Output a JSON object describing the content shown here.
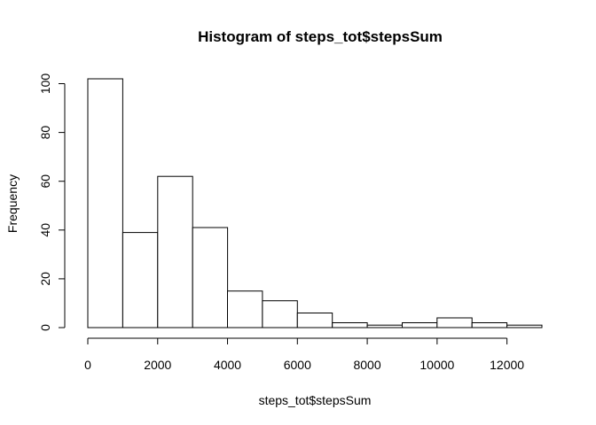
{
  "chart_data": {
    "type": "bar",
    "subtype": "histogram",
    "title": "Histogram of steps_tot$stepsSum",
    "xlabel": "steps_tot$stepsSum",
    "ylabel": "Frequency",
    "bin_width": 1000,
    "bins": [
      {
        "start": 0,
        "end": 1000,
        "count": 102
      },
      {
        "start": 1000,
        "end": 2000,
        "count": 39
      },
      {
        "start": 2000,
        "end": 3000,
        "count": 62
      },
      {
        "start": 3000,
        "end": 4000,
        "count": 41
      },
      {
        "start": 4000,
        "end": 5000,
        "count": 15
      },
      {
        "start": 5000,
        "end": 6000,
        "count": 11
      },
      {
        "start": 6000,
        "end": 7000,
        "count": 6
      },
      {
        "start": 7000,
        "end": 8000,
        "count": 2
      },
      {
        "start": 8000,
        "end": 9000,
        "count": 1
      },
      {
        "start": 9000,
        "end": 10000,
        "count": 2
      },
      {
        "start": 10000,
        "end": 11000,
        "count": 4
      },
      {
        "start": 11000,
        "end": 12000,
        "count": 2
      },
      {
        "start": 12000,
        "end": 13000,
        "count": 1
      }
    ],
    "xlim": [
      0,
      13000
    ],
    "ylim": [
      0,
      102
    ],
    "x_ticks": [
      0,
      2000,
      4000,
      6000,
      8000,
      10000,
      12000
    ],
    "x_tick_labels": [
      "0",
      "2000",
      "4000",
      "6000",
      "8000",
      "10000",
      "12000"
    ],
    "y_ticks": [
      0,
      20,
      40,
      60,
      80,
      100
    ],
    "y_tick_labels": [
      "0",
      "20",
      "40",
      "60",
      "80",
      "100"
    ],
    "grid": false,
    "legend": "none"
  }
}
